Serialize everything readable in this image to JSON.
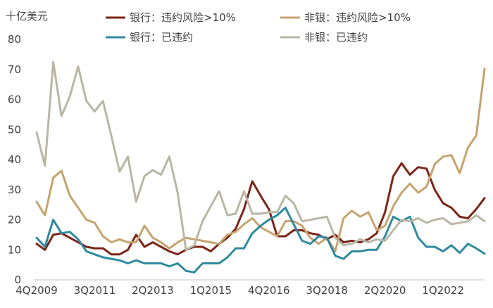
{
  "chart_data": {
    "type": "line",
    "title": "",
    "unit_label": "十亿美元",
    "xlabel": "",
    "ylabel": "",
    "ylim": [
      0,
      80
    ],
    "yticks": [
      0,
      10,
      20,
      30,
      40,
      50,
      60,
      70,
      80
    ],
    "x_tick_labels": [
      "4Q2009",
      "3Q2011",
      "2Q2013",
      "1Q2015",
      "4Q2016",
      "3Q2018",
      "2Q2020",
      "1Q2022"
    ],
    "x_tick_step": 7,
    "grid": false,
    "legend_position": "top",
    "series": [
      {
        "name": "银行：违约风险>10%",
        "color": "#7b2418",
        "values": [
          12,
          10,
          15,
          15.5,
          14,
          12.5,
          11,
          10.5,
          10.5,
          8.5,
          8.5,
          10,
          15,
          11,
          12.5,
          11,
          9.5,
          8.5,
          10,
          11,
          11,
          9.5,
          12,
          14,
          17,
          23.5,
          32.8,
          28,
          23.5,
          14.5,
          14.5,
          16.5,
          16.5,
          15.5,
          15,
          13.5,
          15,
          12.5,
          13,
          12.5,
          13.5,
          15.5,
          22.5,
          34.5,
          38.8,
          35,
          37.5,
          37,
          30,
          25.5,
          24,
          21,
          20.5,
          23.5,
          27.2
        ]
      },
      {
        "name": "非银：违约风险>10%",
        "color": "#c6a36f",
        "values": [
          26,
          21.5,
          34,
          36.3,
          28,
          24,
          20,
          19,
          14.5,
          12.5,
          13.5,
          12.5,
          12.5,
          18,
          14,
          12.5,
          10.5,
          12.5,
          14,
          13.5,
          13,
          12.5,
          12,
          15,
          16,
          18.5,
          20.5,
          17.5,
          16,
          14.5,
          19.5,
          19.5,
          18,
          14,
          12,
          14,
          9.5,
          20.5,
          23,
          21,
          22.5,
          16.5,
          18,
          24.5,
          29,
          32,
          29,
          31,
          38.5,
          41,
          41.5,
          35.5,
          44,
          48,
          70.2
        ]
      },
      {
        "name": "银行：已违约",
        "color": "#2f8a9e",
        "values": [
          14,
          11,
          20,
          15.5,
          16,
          13.5,
          9.5,
          8.5,
          7.5,
          7,
          6.5,
          5.5,
          6.5,
          5.5,
          5.5,
          5.5,
          4.5,
          5.5,
          3,
          2.5,
          5.5,
          5.5,
          5.5,
          7.5,
          10.5,
          10.5,
          15.5,
          18,
          20,
          21.5,
          24,
          18.5,
          13,
          12,
          14.5,
          14,
          8,
          7,
          9.5,
          9.5,
          10,
          10,
          14.5,
          21,
          19.5,
          21,
          14,
          11,
          11,
          9.5,
          11.5,
          9,
          12,
          10.5,
          8.7
        ]
      },
      {
        "name": "非银：已违约",
        "color": "#b9b6a4",
        "values": [
          49,
          38,
          72.5,
          54.5,
          61,
          71,
          59.5,
          56,
          59.5,
          48,
          36,
          41,
          26,
          34.5,
          36.5,
          35,
          41,
          29,
          10,
          11.5,
          19.5,
          24.5,
          29.5,
          21.5,
          22,
          29.5,
          22,
          22,
          22.5,
          22.5,
          28,
          25.5,
          19.5,
          20,
          20.5,
          21,
          14,
          11.5,
          12,
          13.5,
          12.5,
          13.5,
          13,
          16.5,
          20,
          19.5,
          20.5,
          19,
          20,
          20.5,
          18.5,
          19,
          19.5,
          21.5,
          19.5
        ]
      }
    ]
  }
}
